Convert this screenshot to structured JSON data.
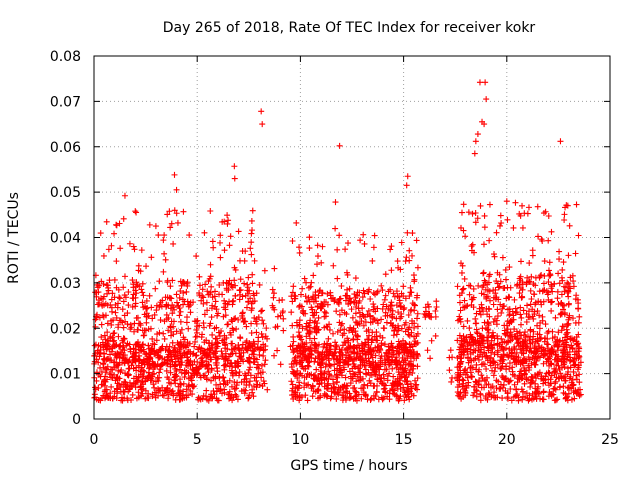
{
  "chart_data": {
    "type": "scatter",
    "title": "Day 265 of 2018, Rate Of TEC Index for receiver kokr",
    "xlabel": "GPS time / hours",
    "ylabel": "ROTI / TECUs",
    "xlim": [
      0,
      25
    ],
    "ylim": [
      0,
      0.08
    ],
    "xticks": [
      0,
      5,
      10,
      15,
      20,
      25
    ],
    "xtick_labels": [
      "0",
      "5",
      "10",
      "15",
      "20",
      "25"
    ],
    "yticks": [
      0,
      0.01,
      0.02,
      0.03,
      0.04,
      0.05,
      0.06,
      0.07,
      0.08
    ],
    "ytick_labels": [
      "0",
      "0.01",
      "0.02",
      "0.03",
      "0.04",
      "0.05",
      "0.06",
      "0.07",
      "0.08"
    ],
    "grid": true,
    "marker": "+",
    "color": "#ff0000",
    "outliers": [
      {
        "x": 8.1,
        "y": 0.0678
      },
      {
        "x": 8.15,
        "y": 0.065
      },
      {
        "x": 11.9,
        "y": 0.0602
      },
      {
        "x": 18.7,
        "y": 0.0742
      },
      {
        "x": 18.95,
        "y": 0.0742
      },
      {
        "x": 19.0,
        "y": 0.0705
      },
      {
        "x": 18.8,
        "y": 0.0655
      },
      {
        "x": 18.9,
        "y": 0.065
      },
      {
        "x": 18.5,
        "y": 0.0612
      },
      {
        "x": 18.6,
        "y": 0.0628
      },
      {
        "x": 18.45,
        "y": 0.0585
      },
      {
        "x": 22.6,
        "y": 0.0612
      },
      {
        "x": 6.8,
        "y": 0.0557
      },
      {
        "x": 6.82,
        "y": 0.053
      },
      {
        "x": 3.9,
        "y": 0.0538
      },
      {
        "x": 4.0,
        "y": 0.0505
      },
      {
        "x": 15.2,
        "y": 0.0535
      },
      {
        "x": 15.15,
        "y": 0.0515
      },
      {
        "x": 1.5,
        "y": 0.0492
      },
      {
        "x": 2.0,
        "y": 0.0458
      },
      {
        "x": 9.8,
        "y": 0.0432
      },
      {
        "x": 11.7,
        "y": 0.0478
      },
      {
        "x": 21.5,
        "y": 0.0468
      },
      {
        "x": 20.0,
        "y": 0.048
      }
    ],
    "segments": [
      {
        "start": 0.0,
        "end": 7.8,
        "min": 0.004,
        "median": 0.012,
        "max": 0.046,
        "points": 1300
      },
      {
        "start": 7.8,
        "end": 8.4,
        "min": 0.006,
        "median": 0.013,
        "max": 0.034,
        "points": 50
      },
      {
        "start": 8.6,
        "end": 9.2,
        "min": 0.012,
        "median": 0.022,
        "max": 0.034,
        "points": 20
      },
      {
        "start": 9.5,
        "end": 15.7,
        "min": 0.004,
        "median": 0.012,
        "max": 0.042,
        "points": 1100
      },
      {
        "start": 16.0,
        "end": 16.6,
        "min": 0.012,
        "median": 0.022,
        "max": 0.028,
        "points": 20
      },
      {
        "start": 17.2,
        "end": 17.4,
        "min": 0.008,
        "median": 0.012,
        "max": 0.022,
        "points": 6
      },
      {
        "start": 17.6,
        "end": 23.6,
        "min": 0.004,
        "median": 0.013,
        "max": 0.048,
        "points": 1100
      }
    ]
  }
}
